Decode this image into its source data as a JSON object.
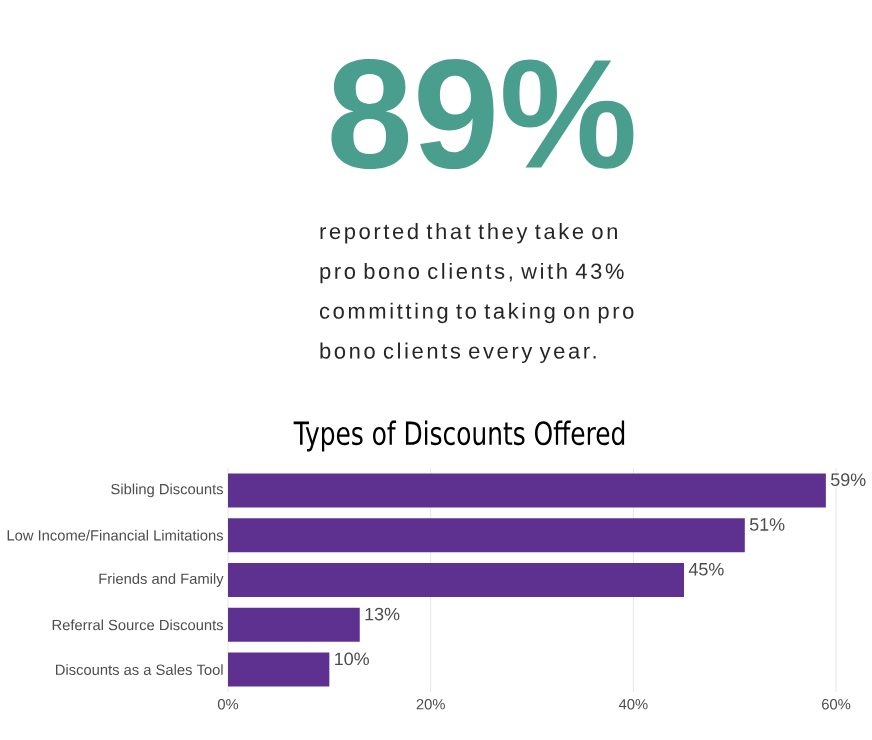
{
  "chart_data": {
    "type": "bar",
    "orientation": "horizontal",
    "title": "Types of Discounts Offered",
    "annotations": [
      "89%",
      "reported that they take on pro bono clients, with 43% committing to taking on pro bono clients every year."
    ],
    "categories": [
      "Sibling Discounts",
      "Low Income/Financial Limitations",
      "Friends and Family",
      "Referral Source Discounts",
      "Discounts as a Sales Tool"
    ],
    "values": [
      59,
      51,
      45,
      13,
      10
    ],
    "value_labels": [
      "59%",
      "51%",
      "45%",
      "13%",
      "10%"
    ],
    "color": "#5e3190",
    "xlim": [
      0,
      60
    ],
    "xticks": [
      {
        "value": 0,
        "label": "0%"
      },
      {
        "value": 20,
        "label": "20%"
      },
      {
        "value": 40,
        "label": "40%"
      },
      {
        "value": 60,
        "label": "60%"
      }
    ],
    "grid": "x"
  }
}
